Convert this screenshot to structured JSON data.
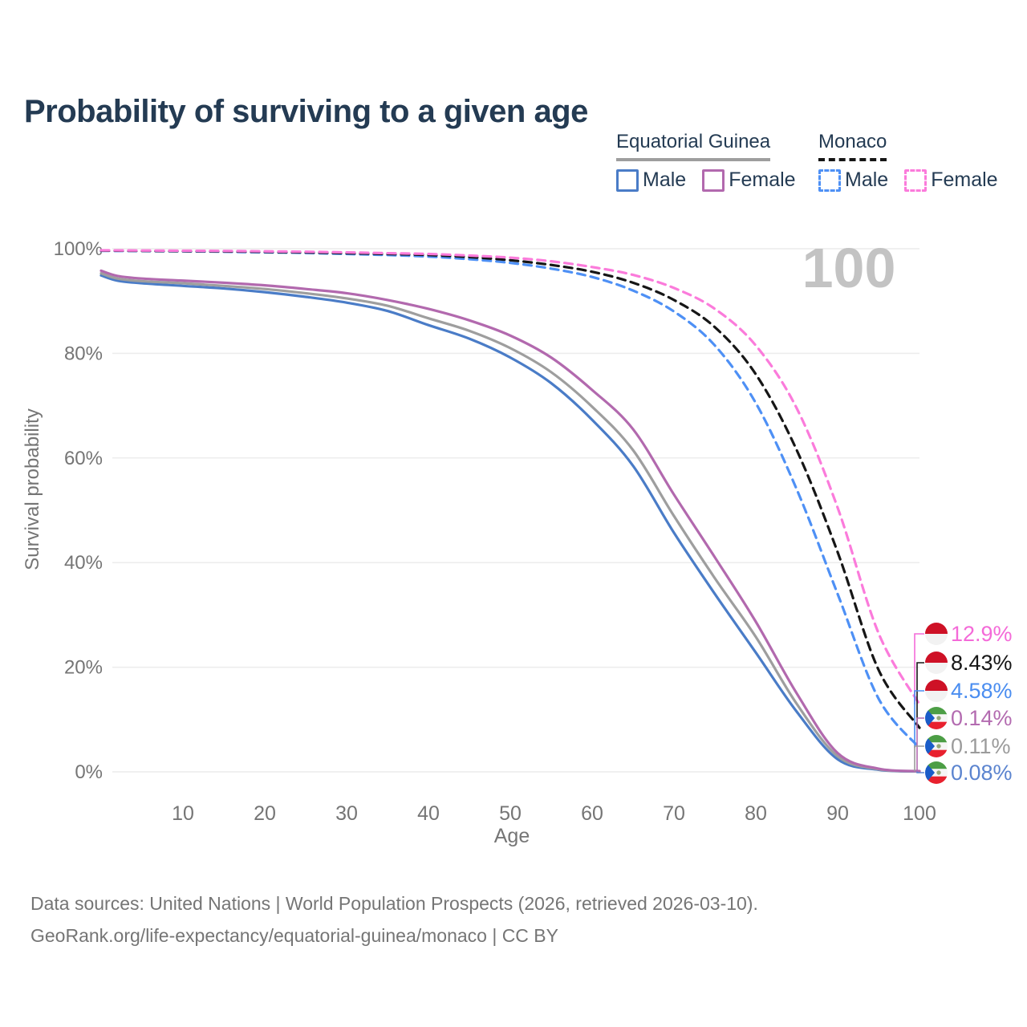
{
  "title": "Probability of surviving to a given age",
  "legend": {
    "groups": [
      {
        "name": "Equatorial Guinea",
        "underline_color": "#9e9e9e",
        "underline_style": "solid",
        "items": [
          {
            "label": "Male",
            "color": "#4a7cc7",
            "dash": false
          },
          {
            "label": "Female",
            "color": "#b269ae",
            "dash": false
          }
        ]
      },
      {
        "name": "Monaco",
        "underline_color": "#161616",
        "underline_style": "dashed",
        "items": [
          {
            "label": "Male",
            "color": "#4e90f5",
            "dash": true
          },
          {
            "label": "Female",
            "color": "#fb7bdb",
            "dash": true
          }
        ]
      }
    ]
  },
  "watermark": "100",
  "chart_data": {
    "type": "line",
    "title": "Probability of surviving to a given age",
    "xlabel": "Age",
    "ylabel": "Survival probability",
    "xlim": [
      0,
      100
    ],
    "ylim": [
      0,
      100
    ],
    "grid": "horizontal",
    "x_ticks": [
      10,
      20,
      30,
      40,
      50,
      60,
      70,
      80,
      90,
      100
    ],
    "y_ticks": [
      {
        "value": 0,
        "label": "0%"
      },
      {
        "value": 20,
        "label": "20%"
      },
      {
        "value": 40,
        "label": "40%"
      },
      {
        "value": 60,
        "label": "60%"
      },
      {
        "value": 80,
        "label": "80%"
      },
      {
        "value": 100,
        "label": "100%"
      }
    ],
    "x": [
      0,
      2,
      5,
      10,
      15,
      20,
      25,
      30,
      35,
      40,
      45,
      50,
      55,
      60,
      65,
      70,
      75,
      80,
      85,
      90,
      95,
      100
    ],
    "series": [
      {
        "name": "Equatorial Guinea — Male",
        "country": "Equatorial Guinea",
        "sex": "Male",
        "color": "#4a7cc7",
        "dash": false,
        "flag": "gq",
        "values": [
          94.9,
          93.9,
          93.4,
          92.9,
          92.4,
          91.7,
          90.8,
          89.7,
          88.1,
          85.4,
          82.8,
          79.2,
          74.3,
          67.3,
          58.5,
          45.7,
          34.0,
          22.8,
          11.5,
          2.4,
          0.4,
          0.08
        ],
        "end_label": "0.08%",
        "end_label_color": "#5b84cf"
      },
      {
        "name": "Equatorial Guinea — Both sexes",
        "country": "Equatorial Guinea",
        "sex": "Both",
        "color": "#9e9e9e",
        "dash": false,
        "flag": "gq",
        "values": [
          95.3,
          94.3,
          93.8,
          93.4,
          92.9,
          92.3,
          91.5,
          90.5,
          89.1,
          86.7,
          84.3,
          81.0,
          76.4,
          69.8,
          61.5,
          48.9,
          37.0,
          25.8,
          13.0,
          3.0,
          0.5,
          0.11
        ],
        "end_label": "0.11%",
        "end_label_color": "#9b9b9b"
      },
      {
        "name": "Equatorial Guinea — Female",
        "country": "Equatorial Guinea",
        "sex": "Female",
        "color": "#b269ae",
        "dash": false,
        "flag": "gq",
        "values": [
          95.8,
          94.8,
          94.3,
          93.9,
          93.5,
          93.0,
          92.3,
          91.5,
          90.2,
          88.5,
          86.3,
          83.4,
          79.2,
          73.0,
          65.5,
          53.0,
          41.0,
          28.7,
          15.0,
          3.6,
          0.6,
          0.14
        ],
        "end_label": "0.14%",
        "end_label_color": "#b36bb0"
      },
      {
        "name": "Monaco — Male",
        "country": "Monaco",
        "sex": "Male",
        "color": "#4e90f5",
        "dash": true,
        "flag": "mc",
        "values": [
          99.6,
          99.58,
          99.55,
          99.5,
          99.42,
          99.3,
          99.2,
          99.0,
          98.8,
          98.5,
          98.0,
          97.3,
          96.2,
          94.6,
          92.0,
          88.0,
          81.5,
          70.5,
          54.0,
          34.0,
          14.0,
          4.58
        ],
        "end_label": "4.58%",
        "end_label_color": "#4a8df0"
      },
      {
        "name": "Monaco — Both sexes",
        "country": "Monaco",
        "sex": "Both",
        "color": "#161616",
        "dash": true,
        "flag": "mc",
        "values": [
          99.65,
          99.63,
          99.6,
          99.55,
          99.5,
          99.4,
          99.3,
          99.15,
          99.0,
          98.8,
          98.4,
          97.8,
          96.9,
          95.6,
          93.5,
          90.2,
          85.0,
          76.0,
          61.5,
          42.0,
          19.5,
          8.43
        ],
        "end_label": "8.43%",
        "end_label_color": "#161616"
      },
      {
        "name": "Monaco — Female",
        "country": "Monaco",
        "sex": "Female",
        "color": "#fb7bdb",
        "dash": true,
        "flag": "mc",
        "values": [
          99.7,
          99.68,
          99.66,
          99.62,
          99.58,
          99.5,
          99.42,
          99.3,
          99.15,
          99.0,
          98.7,
          98.3,
          97.6,
          96.5,
          95.0,
          92.5,
          88.5,
          81.5,
          69.5,
          50.5,
          26.5,
          12.9
        ],
        "end_label": "12.9%",
        "end_label_color": "#f46ad8"
      }
    ],
    "flag_colors": {
      "mc": {
        "top": "#ce1126",
        "bottom": "#f2f2f2"
      },
      "gq": {
        "green": "#4c9e45",
        "white": "#f6f6f6",
        "red": "#e8212e",
        "blue": "#1a5cc8",
        "arms": "#97a979"
      }
    }
  },
  "footer": {
    "line1": "Data sources: United Nations | World Population Prospects (2026, retrieved 2026-03-10).",
    "line2": "GeoRank.org/life-expectancy/equatorial-guinea/monaco | CC BY"
  }
}
